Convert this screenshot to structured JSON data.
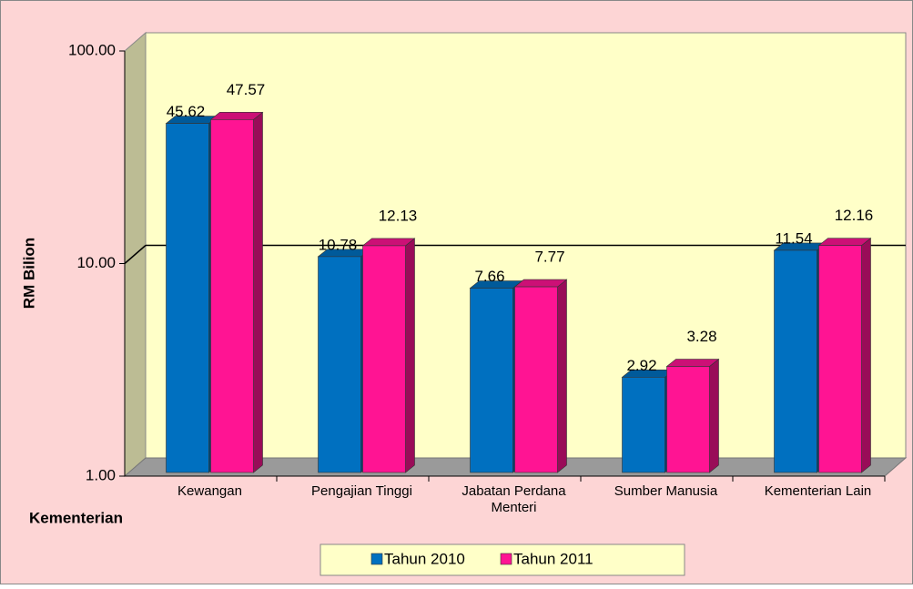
{
  "chart_data": {
    "type": "bar",
    "categories": [
      "Kewangan",
      "Pengajian Tinggi",
      "Jabatan Perdana Menteri",
      "Sumber Manusia",
      "Kementerian Lain"
    ],
    "series": [
      {
        "name": "Tahun 2010",
        "color": "#0070c0",
        "values": [
          45.62,
          10.78,
          7.66,
          2.92,
          11.54
        ]
      },
      {
        "name": "Tahun 2011",
        "color": "#ff1493",
        "values": [
          47.57,
          12.13,
          7.77,
          3.28,
          12.16
        ]
      }
    ],
    "ylabel": "RM Bilion",
    "xlabel": "Kementerian",
    "log_y": true,
    "ylim": [
      1,
      100
    ],
    "yticks": [
      {
        "value": 1,
        "label": "1.00"
      },
      {
        "value": 10,
        "label": "10.00"
      },
      {
        "value": 100,
        "label": "100.00"
      }
    ],
    "grid": true,
    "legend": "bottom"
  }
}
